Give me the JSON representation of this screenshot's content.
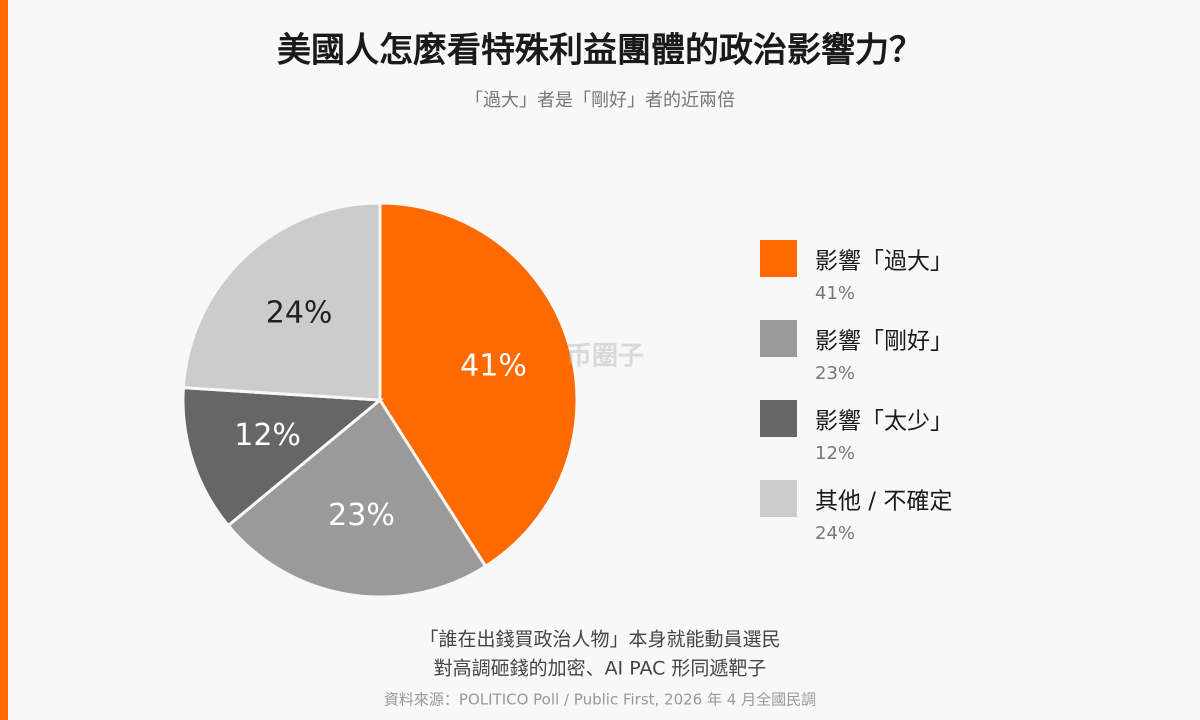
{
  "chart_data": {
    "type": "pie",
    "title": "美國人怎麼看特殊利益團體的政治影響力？",
    "subtitle": "「過大」者是「剛好」者的近兩倍",
    "categories": [
      "影響「過大」",
      "影響「剛好」",
      "影響「太少」",
      "其他 / 不確定"
    ],
    "values": [
      41,
      23,
      12,
      24
    ],
    "value_labels": [
      "41%",
      "23%",
      "12%",
      "24%"
    ],
    "colors": [
      "#ff6a00",
      "#9a9a9a",
      "#666666",
      "#cccccc"
    ],
    "label_colors": [
      "#ffffff",
      "#ffffff",
      "#ffffff",
      "#222222"
    ],
    "legend": "right",
    "watermark": "币圈子",
    "notes": [
      "「誰在出錢買政治人物」本身就能動員選民",
      "對高調砸錢的加密、AI PAC 形同遞靶子"
    ],
    "source": "資料來源：POLITICO Poll / Public First, 2026 年 4 月全國民調"
  }
}
